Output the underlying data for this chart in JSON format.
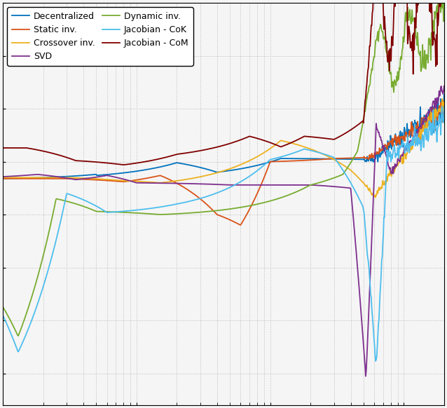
{
  "colors": {
    "Decentralized": "#0072bd",
    "Static inv.": "#d95319",
    "Crossover inv.": "#edb120",
    "SVD": "#7e2f8e",
    "Dynamic inv.": "#77ac30",
    "Jacobian - CoK": "#4dbeee",
    "Jacobian - CoM": "#800000"
  },
  "legend_entries": [
    "Decentralized",
    "Static inv.",
    "Crossover inv.",
    "SVD",
    "Dynamic inv.",
    "Jacobian - CoK",
    "Jacobian - CoM"
  ],
  "xlim": [
    0.1,
    200
  ],
  "ylim": [
    -1.8,
    1.8
  ],
  "grid_linestyle": ":",
  "grid_color": "#bbbbbb",
  "background_color": "#f5f5f5",
  "linewidth": 1.3,
  "legend_fontsize": 9,
  "tick_fontsize": 9
}
